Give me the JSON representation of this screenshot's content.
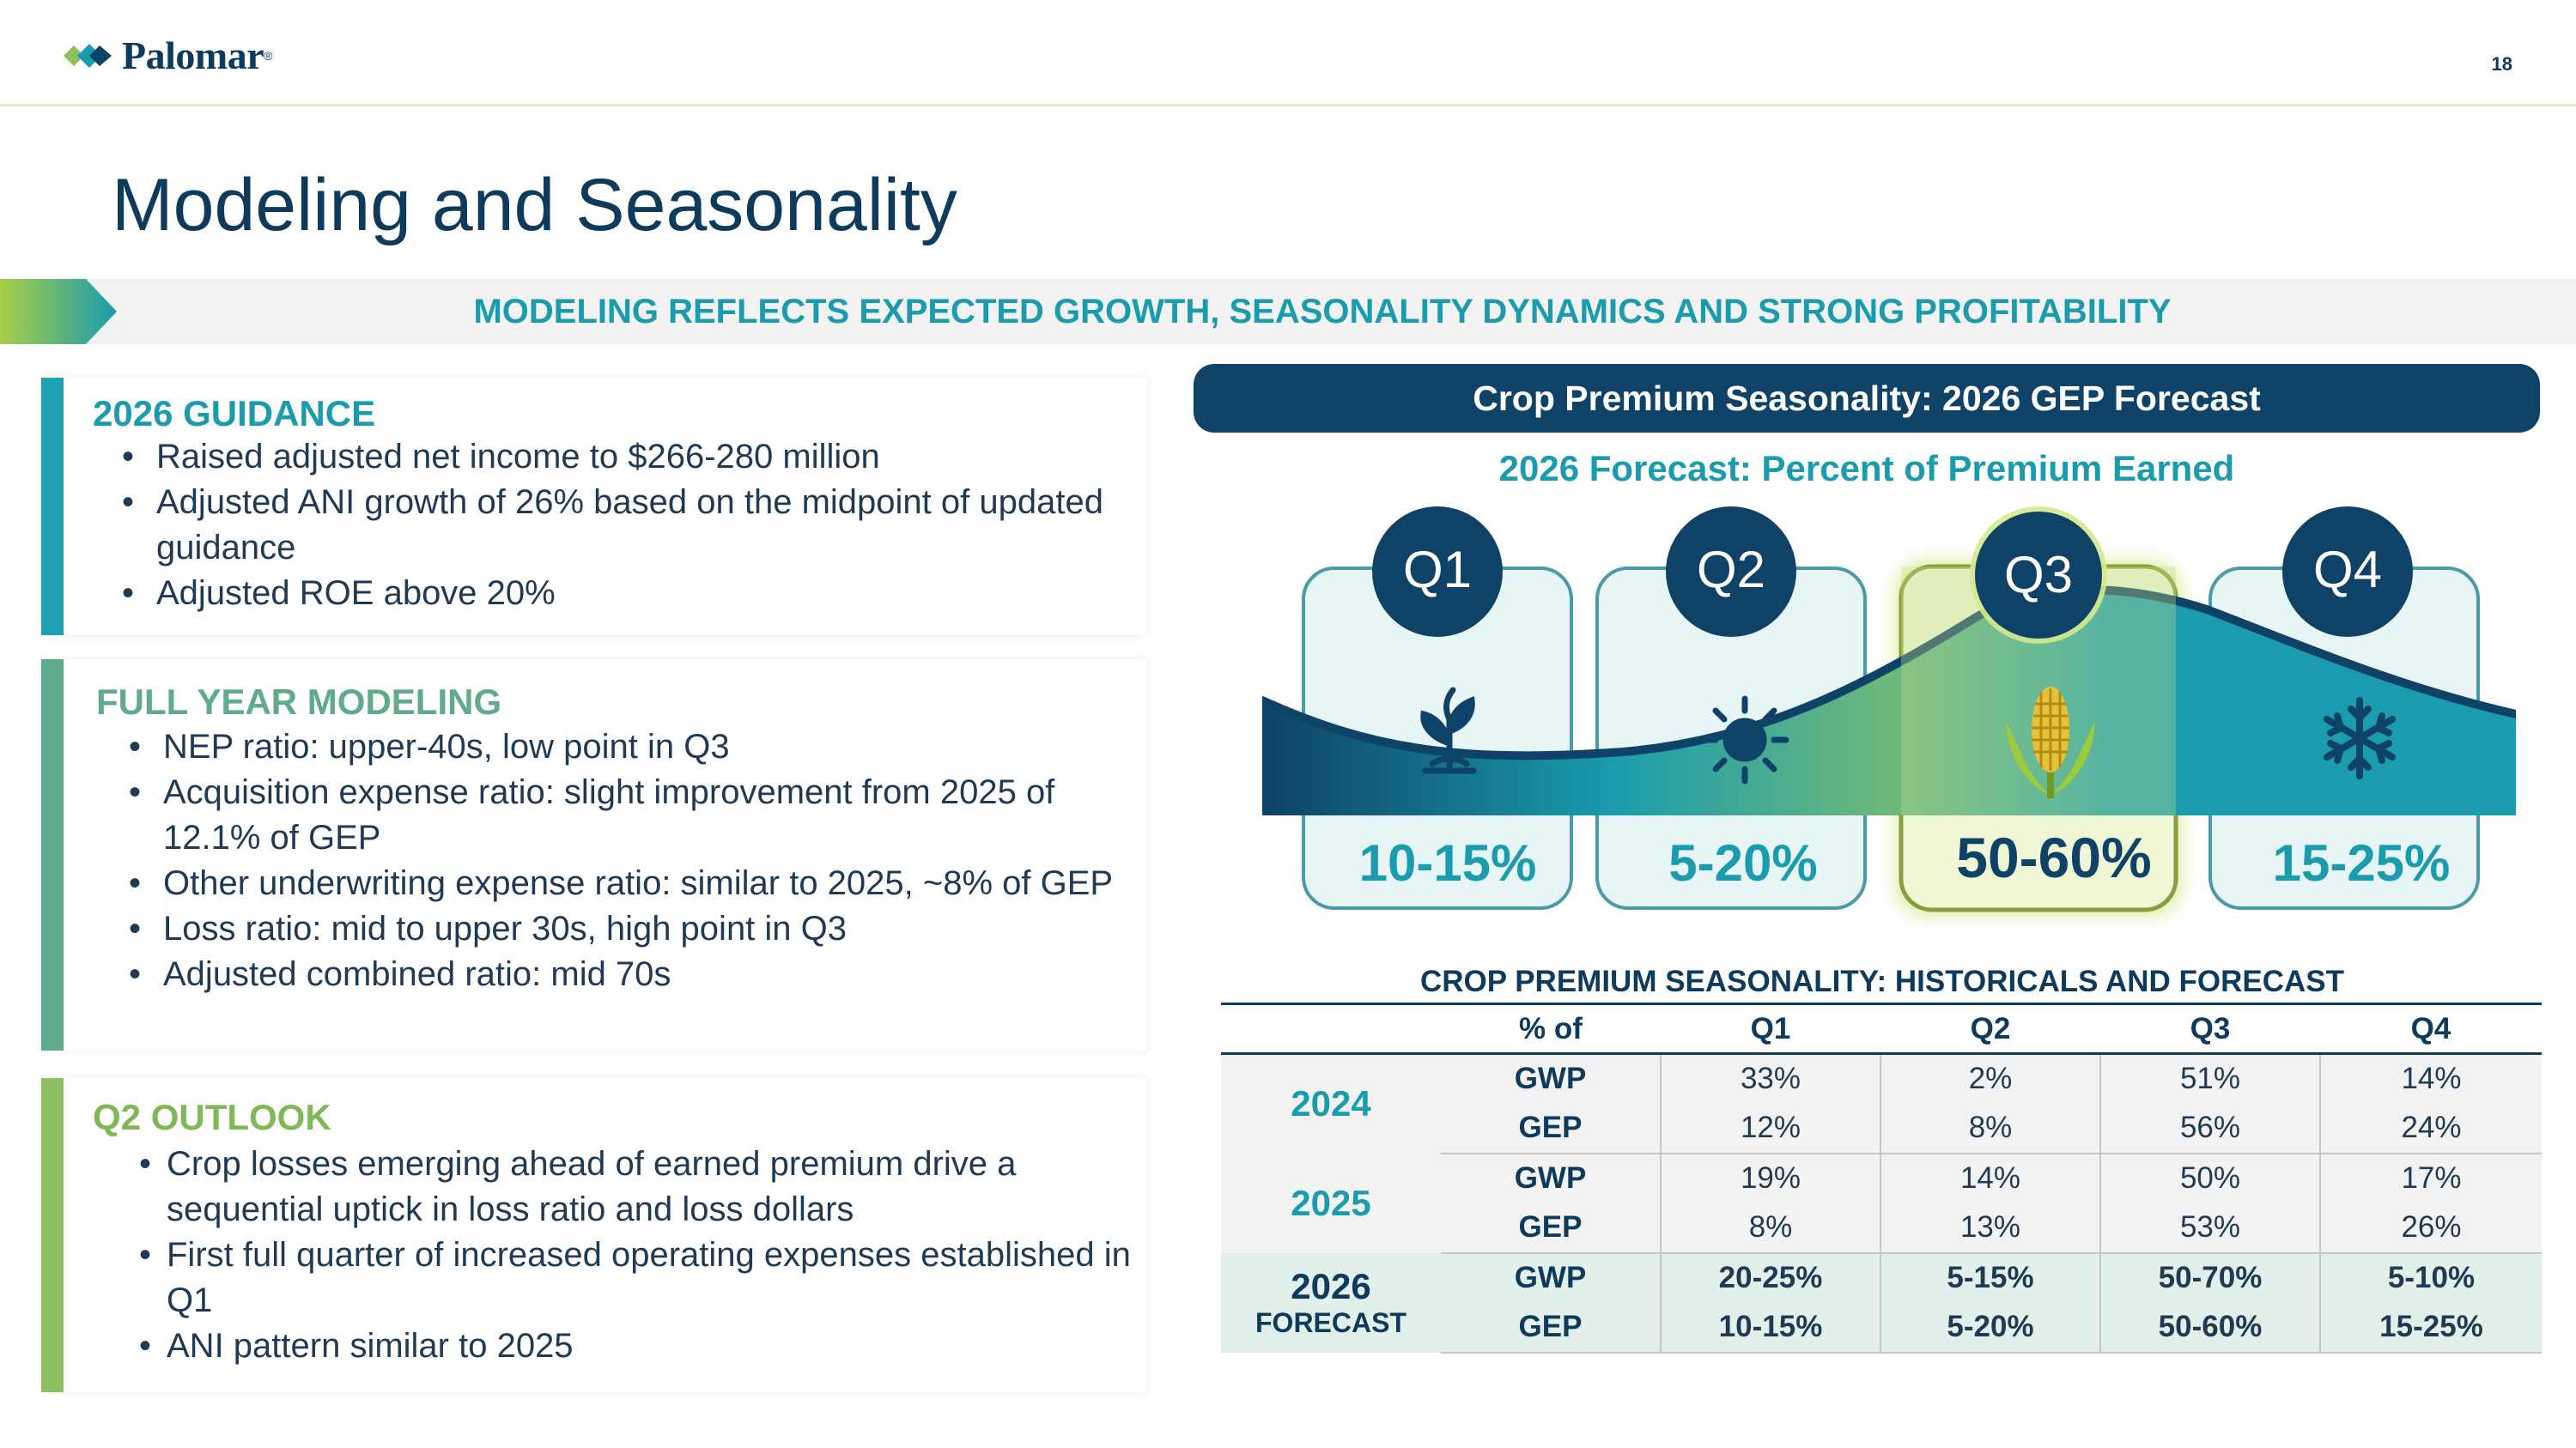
{
  "header": {
    "logo_text": "Palomar",
    "page_number": "18"
  },
  "title": "Modeling and Seasonality",
  "banner": "MODELING REFLECTS EXPECTED GROWTH, SEASONALITY DYNAMICS AND STRONG PROFITABILITY",
  "guidance": {
    "heading": "2026 GUIDANCE",
    "items": [
      "Raised adjusted net income to $266-280 million",
      "Adjusted ANI growth of 26% based on the midpoint of updated guidance",
      "Adjusted ROE above 20%"
    ]
  },
  "modeling": {
    "heading": "FULL YEAR MODELING",
    "items": [
      "NEP ratio: upper-40s, low point in Q3",
      "Acquisition expense ratio: slight improvement from 2025 of 12.1% of GEP",
      "Other underwriting expense ratio: similar to 2025, ~8% of GEP",
      "Loss ratio: mid to upper 30s, high point in Q3",
      "Adjusted combined ratio: mid 70s"
    ]
  },
  "outlook": {
    "heading": "Q2 OUTLOOK",
    "items": [
      "Crop losses emerging ahead of earned premium drive a sequential uptick in loss ratio and loss dollars",
      "First full quarter of increased operating expenses established in Q1",
      "ANI pattern similar to 2025"
    ]
  },
  "crop": {
    "header": "Crop Premium Seasonality: 2026 GEP Forecast",
    "subtitle": "2026 Forecast: Percent of Premium Earned",
    "quarters": [
      {
        "label": "Q1",
        "value": "10-15%",
        "icon": "sprout-icon"
      },
      {
        "label": "Q2",
        "value": "5-20%",
        "icon": "sun-icon"
      },
      {
        "label": "Q3",
        "value": "50-60%",
        "icon": "corn-icon"
      },
      {
        "label": "Q4",
        "value": "15-25%",
        "icon": "snowflake-icon"
      }
    ],
    "colors": {
      "navy": "#0e4266",
      "teal": "#1a9cae",
      "green": "#8cc063"
    }
  },
  "table": {
    "title": "CROP PREMIUM SEASONALITY: HISTORICALS AND FORECAST",
    "headers": [
      "% of",
      "Q1",
      "Q2",
      "Q3",
      "Q4"
    ],
    "rows": [
      {
        "year": "2024",
        "kind": "GWP",
        "values": [
          "33%",
          "2%",
          "51%",
          "14%"
        ]
      },
      {
        "year": "2024",
        "kind": "GEP",
        "values": [
          "12%",
          "8%",
          "56%",
          "24%"
        ]
      },
      {
        "year": "2025",
        "kind": "GWP",
        "values": [
          "19%",
          "14%",
          "50%",
          "17%"
        ]
      },
      {
        "year": "2025",
        "kind": "GEP",
        "values": [
          "8%",
          "13%",
          "53%",
          "26%"
        ]
      },
      {
        "year": "2026",
        "year_sub": "FORECAST",
        "kind": "GWP",
        "values": [
          "20-25%",
          "5-15%",
          "50-70%",
          "5-10%"
        ]
      },
      {
        "year": "2026",
        "year_sub": "FORECAST",
        "kind": "GEP",
        "values": [
          "10-15%",
          "5-20%",
          "50-60%",
          "15-25%"
        ]
      }
    ]
  }
}
